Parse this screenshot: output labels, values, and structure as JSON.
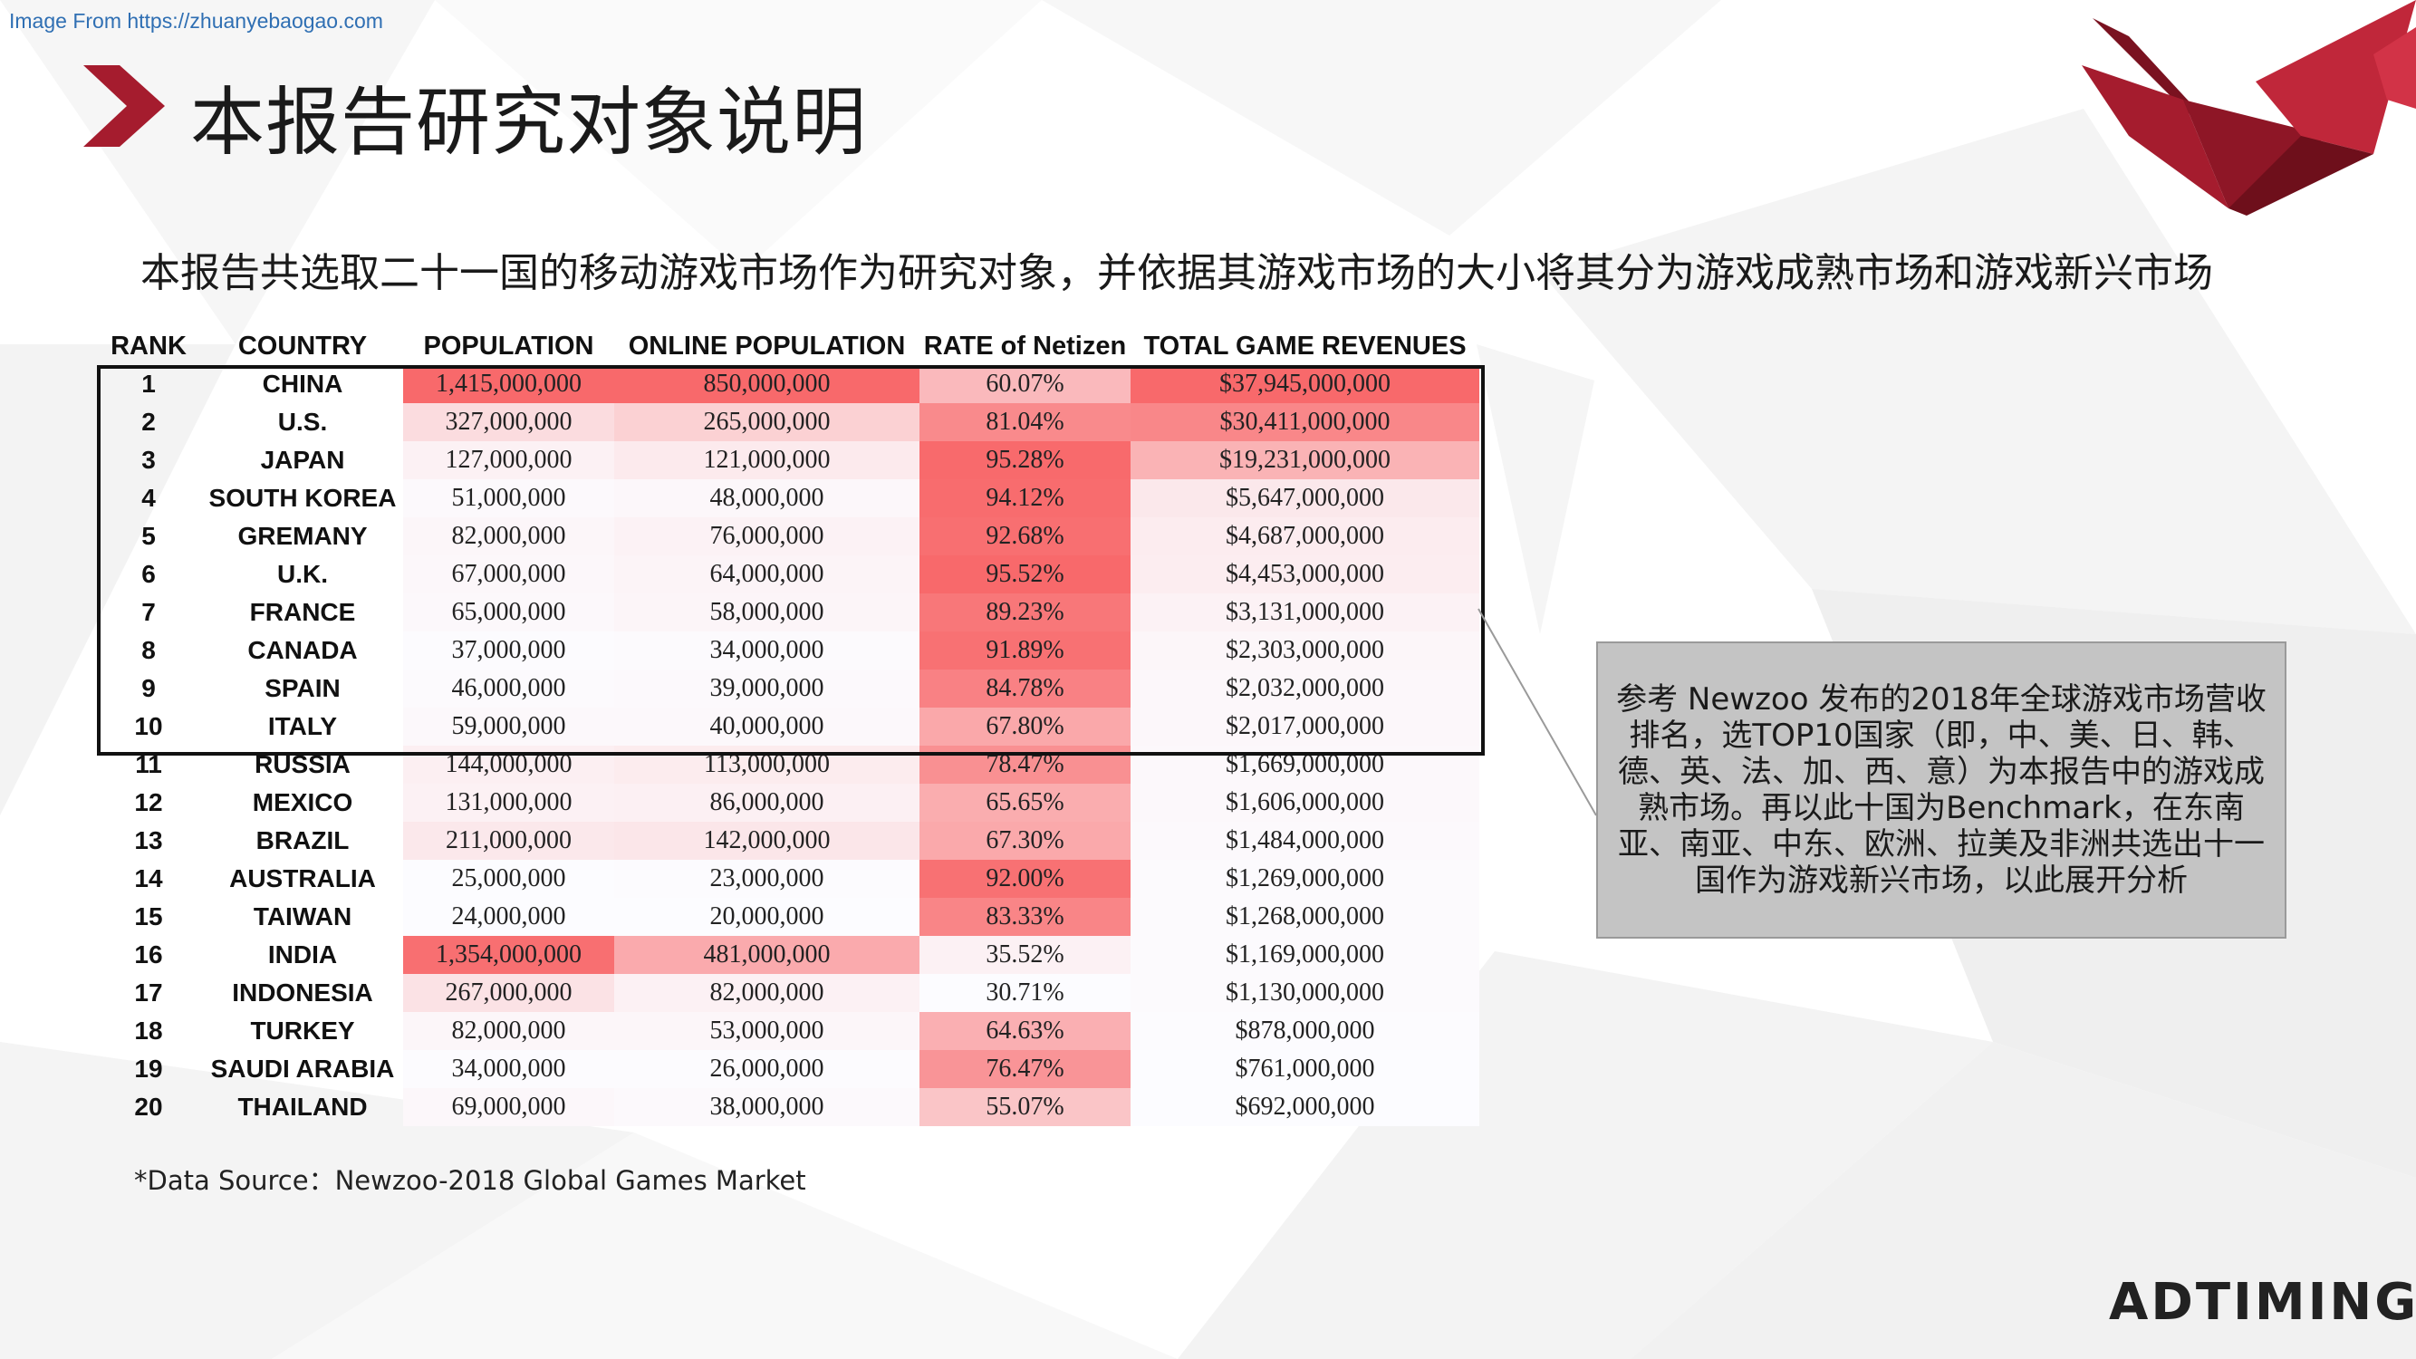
{
  "source_link": "Image From https://zhuanyebaogao.com",
  "page_title": "本报告研究对象说明",
  "subtitle": "本报告共选取二十一国的移动游戏市场作为研究对象，并依据其游戏市场的大小将其分为游戏成熟市场和游戏新兴市场",
  "table": {
    "headers": [
      "RANK",
      "COUNTRY",
      "POPULATION",
      "ONLINE POPULATION",
      "RATE of Netizen",
      "TOTAL GAME REVENUES"
    ],
    "rows": [
      {
        "rank": "1",
        "country": "CHINA",
        "population": "1,415,000,000",
        "online_population": "850,000,000",
        "rate": "60.07%",
        "revenue": "$37,945,000,000"
      },
      {
        "rank": "2",
        "country": "U.S.",
        "population": "327,000,000",
        "online_population": "265,000,000",
        "rate": "81.04%",
        "revenue": "$30,411,000,000"
      },
      {
        "rank": "3",
        "country": "JAPAN",
        "population": "127,000,000",
        "online_population": "121,000,000",
        "rate": "95.28%",
        "revenue": "$19,231,000,000"
      },
      {
        "rank": "4",
        "country": "SOUTH KOREA",
        "population": "51,000,000",
        "online_population": "48,000,000",
        "rate": "94.12%",
        "revenue": "$5,647,000,000"
      },
      {
        "rank": "5",
        "country": "GREMANY",
        "population": "82,000,000",
        "online_population": "76,000,000",
        "rate": "92.68%",
        "revenue": "$4,687,000,000"
      },
      {
        "rank": "6",
        "country": "U.K.",
        "population": "67,000,000",
        "online_population": "64,000,000",
        "rate": "95.52%",
        "revenue": "$4,453,000,000"
      },
      {
        "rank": "7",
        "country": "FRANCE",
        "population": "65,000,000",
        "online_population": "58,000,000",
        "rate": "89.23%",
        "revenue": "$3,131,000,000"
      },
      {
        "rank": "8",
        "country": "CANADA",
        "population": "37,000,000",
        "online_population": "34,000,000",
        "rate": "91.89%",
        "revenue": "$2,303,000,000"
      },
      {
        "rank": "9",
        "country": "SPAIN",
        "population": "46,000,000",
        "online_population": "39,000,000",
        "rate": "84.78%",
        "revenue": "$2,032,000,000"
      },
      {
        "rank": "10",
        "country": "ITALY",
        "population": "59,000,000",
        "online_population": "40,000,000",
        "rate": "67.80%",
        "revenue": "$2,017,000,000"
      },
      {
        "rank": "11",
        "country": "RUSSIA",
        "population": "144,000,000",
        "online_population": "113,000,000",
        "rate": "78.47%",
        "revenue": "$1,669,000,000"
      },
      {
        "rank": "12",
        "country": "MEXICO",
        "population": "131,000,000",
        "online_population": "86,000,000",
        "rate": "65.65%",
        "revenue": "$1,606,000,000"
      },
      {
        "rank": "13",
        "country": "BRAZIL",
        "population": "211,000,000",
        "online_population": "142,000,000",
        "rate": "67.30%",
        "revenue": "$1,484,000,000"
      },
      {
        "rank": "14",
        "country": "AUSTRALIA",
        "population": "25,000,000",
        "online_population": "23,000,000",
        "rate": "92.00%",
        "revenue": "$1,269,000,000"
      },
      {
        "rank": "15",
        "country": "TAIWAN",
        "population": "24,000,000",
        "online_population": "20,000,000",
        "rate": "83.33%",
        "revenue": "$1,268,000,000"
      },
      {
        "rank": "16",
        "country": "INDIA",
        "population": "1,354,000,000",
        "online_population": "481,000,000",
        "rate": "35.52%",
        "revenue": "$1,169,000,000"
      },
      {
        "rank": "17",
        "country": "INDONESIA",
        "population": "267,000,000",
        "online_population": "82,000,000",
        "rate": "30.71%",
        "revenue": "$1,130,000,000"
      },
      {
        "rank": "18",
        "country": "TURKEY",
        "population": "82,000,000",
        "online_population": "53,000,000",
        "rate": "64.63%",
        "revenue": "$878,000,000"
      },
      {
        "rank": "19",
        "country": "SAUDI ARABIA",
        "population": "34,000,000",
        "online_population": "26,000,000",
        "rate": "76.47%",
        "revenue": "$761,000,000"
      },
      {
        "rank": "20",
        "country": "THAILAND",
        "population": "69,000,000",
        "online_population": "38,000,000",
        "rate": "55.07%",
        "revenue": "$692,000,000"
      }
    ]
  },
  "note": "参考 Newzoo 发布的2018年全球游戏市场营收排名，选TOP10国家（即，中、美、日、韩、德、英、法、加、西、意）为本报告中的游戏成熟市场。再以此十国为Benchmark，在东南亚、南亚、中东、欧洲、拉美及非洲共选出十一国作为游戏新兴市场，以此展开分析",
  "footnote": "*Data Source：Newzoo-2018 Global Games Market",
  "brand_logo": "ADTIMING",
  "colors": {
    "accent": "#a51c2e",
    "heat_max": "#f8696b",
    "heat_min": "#fcfcff",
    "note_bg": "#c4c4c4"
  },
  "icons": {
    "title_marker": "chevron-right-icon",
    "corner_logo": "red-origami-bird-icon"
  }
}
